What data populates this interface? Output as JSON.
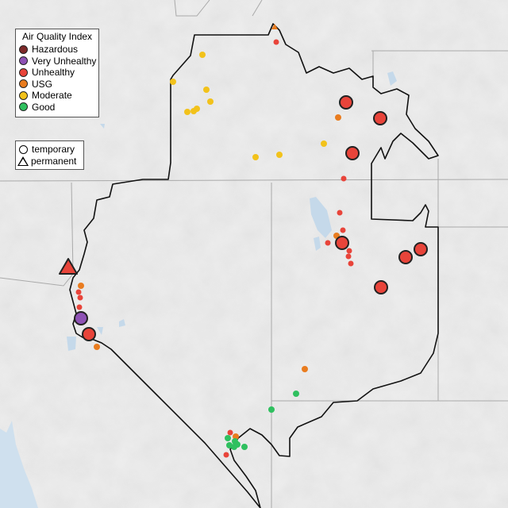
{
  "legend": {
    "title": "Air Quality Index",
    "categories": [
      {
        "label": "Hazardous",
        "color": "#7e2a2a"
      },
      {
        "label": "Very Unhealthy",
        "color": "#8e52b5"
      },
      {
        "label": "Unhealthy",
        "color": "#e8443a"
      },
      {
        "label": "USG",
        "color": "#e97c1f"
      },
      {
        "label": "Moderate",
        "color": "#f2c21b"
      },
      {
        "label": "Good",
        "color": "#2fc05f"
      }
    ],
    "types": [
      {
        "label": "temporary",
        "icon": "circle"
      },
      {
        "label": "permanent",
        "icon": "triangle"
      }
    ]
  }
}
